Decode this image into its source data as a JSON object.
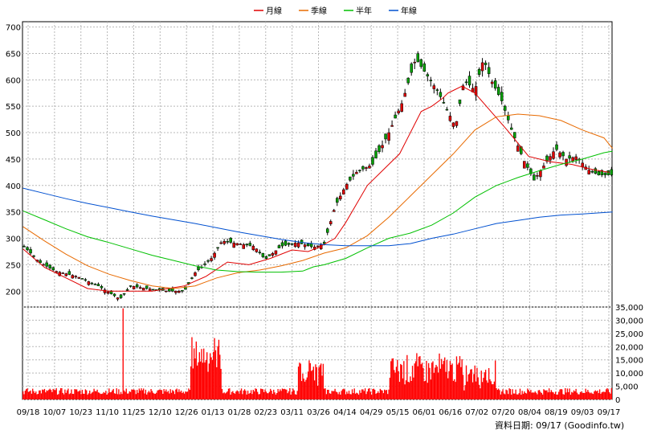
{
  "legend": [
    {
      "label": "月線",
      "color": "#e00000"
    },
    {
      "label": "季線",
      "color": "#e86a00"
    },
    {
      "label": "半年",
      "color": "#00c000"
    },
    {
      "label": "年線",
      "color": "#0050d0"
    }
  ],
  "footer": {
    "date_label": "資料日期: 09/17",
    "source": "(Goodinfo.tw)"
  },
  "chart_data": [
    {
      "type": "candlestick",
      "title": "",
      "ylim": [
        170,
        710
      ],
      "yticks": [
        200,
        250,
        300,
        350,
        400,
        450,
        500,
        550,
        600,
        650,
        700
      ],
      "x_labels": [
        "09/18",
        "10/07",
        "10/23",
        "11/10",
        "11/25",
        "12/10",
        "12/26",
        "01/13",
        "01/28",
        "02/23",
        "03/11",
        "03/26",
        "04/14",
        "04/29",
        "05/15",
        "06/01",
        "06/16",
        "07/02",
        "07/20",
        "08/04",
        "08/19",
        "09/03",
        "09/17"
      ],
      "grid": true,
      "moving_averages": [
        {
          "name": "月線",
          "points": [
            [
              0,
              280
            ],
            [
              20,
              245
            ],
            [
              40,
              225
            ],
            [
              60,
              205
            ],
            [
              80,
              200
            ],
            [
              100,
              200
            ],
            [
              120,
              200
            ],
            [
              150,
              210
            ],
            [
              170,
              228
            ],
            [
              190,
              255
            ],
            [
              210,
              250
            ],
            [
              230,
              262
            ],
            [
              250,
              278
            ],
            [
              265,
              275
            ],
            [
              275,
              283
            ],
            [
              290,
              300
            ],
            [
              300,
              330
            ],
            [
              320,
              400
            ],
            [
              340,
              440
            ],
            [
              350,
              460
            ],
            [
              360,
              500
            ],
            [
              370,
              540
            ],
            [
              380,
              550
            ],
            [
              390,
              565
            ],
            [
              395,
              575
            ],
            [
              400,
              580
            ],
            [
              408,
              588
            ],
            [
              420,
              575
            ],
            [
              435,
              540
            ],
            [
              450,
              505
            ],
            [
              470,
              455
            ],
            [
              490,
              445
            ],
            [
              510,
              440
            ],
            [
              530,
              430
            ],
            [
              545,
              425
            ]
          ]
        },
        {
          "name": "季線",
          "points": [
            [
              0,
              322
            ],
            [
              20,
              295
            ],
            [
              40,
              270
            ],
            [
              60,
              248
            ],
            [
              80,
              232
            ],
            [
              100,
              220
            ],
            [
              120,
              210
            ],
            [
              140,
              205
            ],
            [
              160,
              210
            ],
            [
              180,
              225
            ],
            [
              200,
              235
            ],
            [
              220,
              240
            ],
            [
              240,
              248
            ],
            [
              260,
              258
            ],
            [
              280,
              272
            ],
            [
              300,
              282
            ],
            [
              320,
              305
            ],
            [
              340,
              340
            ],
            [
              360,
              380
            ],
            [
              380,
              420
            ],
            [
              400,
              460
            ],
            [
              420,
              505
            ],
            [
              440,
              530
            ],
            [
              460,
              535
            ],
            [
              480,
              532
            ],
            [
              500,
              523
            ],
            [
              520,
              505
            ],
            [
              540,
              490
            ],
            [
              548,
              470
            ]
          ]
        },
        {
          "name": "半年",
          "points": [
            [
              0,
              352
            ],
            [
              20,
              335
            ],
            [
              40,
              318
            ],
            [
              60,
              303
            ],
            [
              80,
              292
            ],
            [
              100,
              280
            ],
            [
              120,
              268
            ],
            [
              140,
              258
            ],
            [
              160,
              248
            ],
            [
              180,
              240
            ],
            [
              200,
              237
            ],
            [
              220,
              236
            ],
            [
              240,
              236
            ],
            [
              260,
              238
            ],
            [
              270,
              246
            ],
            [
              280,
              250
            ],
            [
              300,
              262
            ],
            [
              320,
              282
            ],
            [
              340,
              300
            ],
            [
              360,
              310
            ],
            [
              380,
              325
            ],
            [
              400,
              348
            ],
            [
              420,
              378
            ],
            [
              440,
              400
            ],
            [
              460,
              415
            ],
            [
              480,
              428
            ],
            [
              500,
              440
            ],
            [
              520,
              450
            ],
            [
              540,
              462
            ],
            [
              548,
              465
            ]
          ]
        },
        {
          "name": "年線",
          "points": [
            [
              0,
              395
            ],
            [
              20,
              385
            ],
            [
              40,
              375
            ],
            [
              60,
              366
            ],
            [
              80,
              358
            ],
            [
              100,
              350
            ],
            [
              120,
              342
            ],
            [
              140,
              335
            ],
            [
              160,
              328
            ],
            [
              180,
              320
            ],
            [
              200,
              312
            ],
            [
              220,
              305
            ],
            [
              240,
              298
            ],
            [
              260,
              292
            ],
            [
              280,
              288
            ],
            [
              300,
              286
            ],
            [
              320,
              286
            ],
            [
              340,
              286
            ],
            [
              360,
              290
            ],
            [
              380,
              300
            ],
            [
              400,
              308
            ],
            [
              420,
              318
            ],
            [
              440,
              328
            ],
            [
              460,
              334
            ],
            [
              480,
              340
            ],
            [
              500,
              344
            ],
            [
              520,
              346
            ],
            [
              548,
              350
            ]
          ]
        }
      ]
    },
    {
      "type": "bar",
      "title": "",
      "ylim": [
        0,
        35000
      ],
      "yticks": [
        0,
        5000,
        10000,
        15000,
        20000,
        25000,
        30000,
        35000
      ],
      "ytick_labels": [
        "0",
        "5,000",
        "10,000",
        "15,000",
        "20,000",
        "25,000",
        "30,000",
        "35,000"
      ],
      "spike": {
        "x": 93,
        "value": 34500
      }
    }
  ]
}
